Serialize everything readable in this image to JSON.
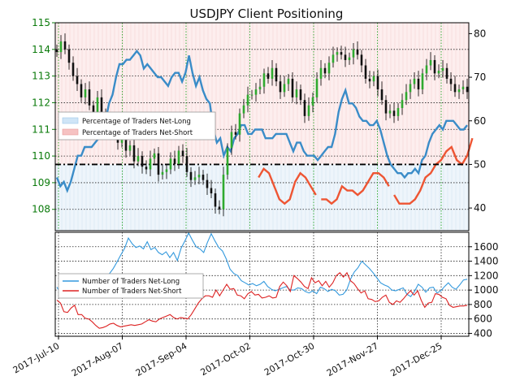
{
  "chart_data": {
    "type": "line",
    "title": "USDJPY Client Positioning",
    "x_tick_labels": [
      "2017-Jul-10",
      "2017-Aug-07",
      "2017-Sep-04",
      "2017-Oct-02",
      "2017-Oct-30",
      "2017-Nov-27",
      "2017-Dec-25"
    ],
    "top_panel": {
      "left_axis": {
        "ticks": [
          108,
          109,
          110,
          111,
          112,
          113,
          114,
          115
        ],
        "range": [
          107.2,
          115.0
        ],
        "color": "#0a7a0a"
      },
      "right_axis": {
        "ticks": [
          40,
          50,
          60,
          70,
          80
        ],
        "range": [
          34.8,
          82.5
        ]
      },
      "reference_line_value": 50,
      "legend": [
        "Percentage of Traders Net-Long",
        "Percentage of Traders Net-Short"
      ],
      "grid": true,
      "price_candles_usdjpy": [
        113.9,
        114.3,
        114.0,
        113.5,
        113.0,
        112.7,
        112.2,
        112.5,
        111.9,
        111.6,
        112.2,
        111.6,
        111.4,
        111.1,
        110.8,
        110.5,
        110.7,
        110.2,
        110.4,
        109.8,
        110.0,
        109.6,
        109.5,
        109.9,
        110.1,
        109.3,
        109.4,
        109.5,
        109.9,
        109.7,
        110.2,
        110.0,
        109.4,
        109.1,
        109.2,
        109.3,
        109.1,
        108.8,
        108.6,
        108.1,
        108.0,
        109.3,
        110.3,
        110.9,
        110.8,
        111.6,
        111.9,
        112.3,
        112.3,
        112.5,
        112.6,
        113.1,
        112.9,
        113.3,
        112.8,
        112.4,
        112.7,
        112.9,
        112.2,
        112.5,
        112.1,
        111.5,
        111.9,
        112.2,
        112.9,
        113.3,
        113.1,
        113.5,
        113.8,
        113.9,
        113.8,
        113.6,
        113.7,
        114.0,
        113.8,
        113.4,
        112.9,
        112.8,
        113.0,
        112.5,
        112.1,
        111.6,
        111.7,
        111.5,
        111.8,
        112.1,
        112.4,
        112.7,
        112.9,
        112.5,
        113.1,
        113.4,
        113.6,
        113.1,
        113.2,
        113.3,
        112.9,
        112.7,
        112.4,
        112.5,
        112.6,
        112.4
      ],
      "percent_net_long": [
        47,
        45,
        46,
        44,
        46,
        49,
        52,
        52,
        54,
        54,
        54,
        55,
        56,
        57,
        60,
        64,
        66,
        70,
        73,
        73,
        74,
        74,
        75,
        76,
        75,
        72,
        73,
        72,
        71,
        70,
        70,
        69,
        68,
        70,
        71,
        71,
        69,
        71,
        75,
        71,
        68,
        70,
        67,
        65,
        64,
        58,
        55,
        56,
        52,
        54,
        53,
        56,
        57,
        59,
        59,
        57,
        57,
        58,
        58,
        58,
        56,
        56,
        56,
        57,
        57,
        57,
        57,
        55,
        53,
        55,
        55,
        53,
        52,
        52,
        52,
        51,
        52,
        53,
        54,
        54,
        57,
        62,
        65,
        67,
        64,
        64,
        63,
        61,
        60,
        60,
        59,
        59,
        60,
        58,
        55,
        52,
        50,
        49,
        48,
        48,
        47,
        48,
        48,
        49,
        48,
        51,
        52,
        55,
        57,
        58,
        59,
        58,
        60,
        60,
        60,
        59,
        58,
        58,
        59
      ],
      "net_short_highlight_percent": [
        47,
        49,
        48,
        45,
        42,
        41,
        42,
        46,
        48,
        47,
        45,
        43,
        42,
        42,
        41,
        42,
        45,
        44,
        44,
        43,
        44,
        46,
        48,
        48,
        47,
        45,
        43,
        41,
        41,
        41,
        42,
        44,
        47,
        48,
        50,
        51,
        53,
        54,
        51,
        50,
        52,
        56
      ]
    },
    "bottom_panel": {
      "right_axis": {
        "ticks": [
          400,
          600,
          800,
          1000,
          1200,
          1400,
          1600
        ],
        "range": [
          360,
          1800
        ]
      },
      "grid": true,
      "series": [
        {
          "name": "Number of Traders Net-Long",
          "color": "#3399dd",
          "values": [
            1040,
            960,
            920,
            940,
            1010,
            1060,
            1100,
            1130,
            1100,
            1150,
            1080,
            1160,
            1200,
            1150,
            1230,
            1300,
            1390,
            1490,
            1580,
            1720,
            1640,
            1590,
            1610,
            1570,
            1670,
            1560,
            1590,
            1520,
            1490,
            1530,
            1450,
            1520,
            1410,
            1580,
            1680,
            1790,
            1690,
            1600,
            1570,
            1520,
            1660,
            1780,
            1680,
            1590,
            1540,
            1430,
            1290,
            1230,
            1200,
            1130,
            1100,
            1070,
            1090,
            1060,
            1080,
            1120,
            1050,
            1010,
            990,
            1010,
            1030,
            1050,
            1000,
            1000,
            1030,
            1020,
            980,
            960,
            990,
            950,
            1040,
            1020,
            980,
            1010,
            990,
            930,
            940,
            1000,
            1150,
            1250,
            1310,
            1400,
            1350,
            1300,
            1240,
            1170,
            1100,
            1070,
            1050,
            1000,
            990,
            1010,
            1030,
            940,
            910,
            980,
            1080,
            1040,
            970,
            1030,
            1040,
            960,
            990,
            1050,
            1100,
            1040,
            1010,
            1070,
            1140,
            1150
          ]
        },
        {
          "name": "Number of Traders Net-Short",
          "color": "#dd2222",
          "values": [
            860,
            820,
            700,
            690,
            750,
            790,
            660,
            660,
            610,
            600,
            560,
            510,
            470,
            480,
            500,
            530,
            540,
            510,
            490,
            500,
            510,
            520,
            510,
            520,
            530,
            560,
            590,
            570,
            560,
            600,
            620,
            640,
            660,
            620,
            600,
            620,
            610,
            600,
            660,
            740,
            820,
            880,
            920,
            920,
            900,
            1000,
            920,
            1000,
            1080,
            1010,
            1020,
            930,
            920,
            880,
            950,
            980,
            930,
            940,
            890,
            900,
            920,
            890,
            900,
            1050,
            1110,
            1060,
            980,
            1200,
            1160,
            1110,
            1050,
            1020,
            1170,
            1100,
            1130,
            1060,
            1120,
            1040,
            1100,
            1200,
            1240,
            1180,
            1240,
            1130,
            1090,
            1020,
            960,
            990,
            880,
            870,
            840,
            850,
            900,
            930,
            830,
            800,
            850,
            830,
            880,
            940,
            990,
            930,
            990,
            860,
            760,
            820,
            830,
            950,
            940,
            900,
            880,
            790,
            760,
            770,
            780,
            780,
            790
          ]
        }
      ]
    }
  }
}
